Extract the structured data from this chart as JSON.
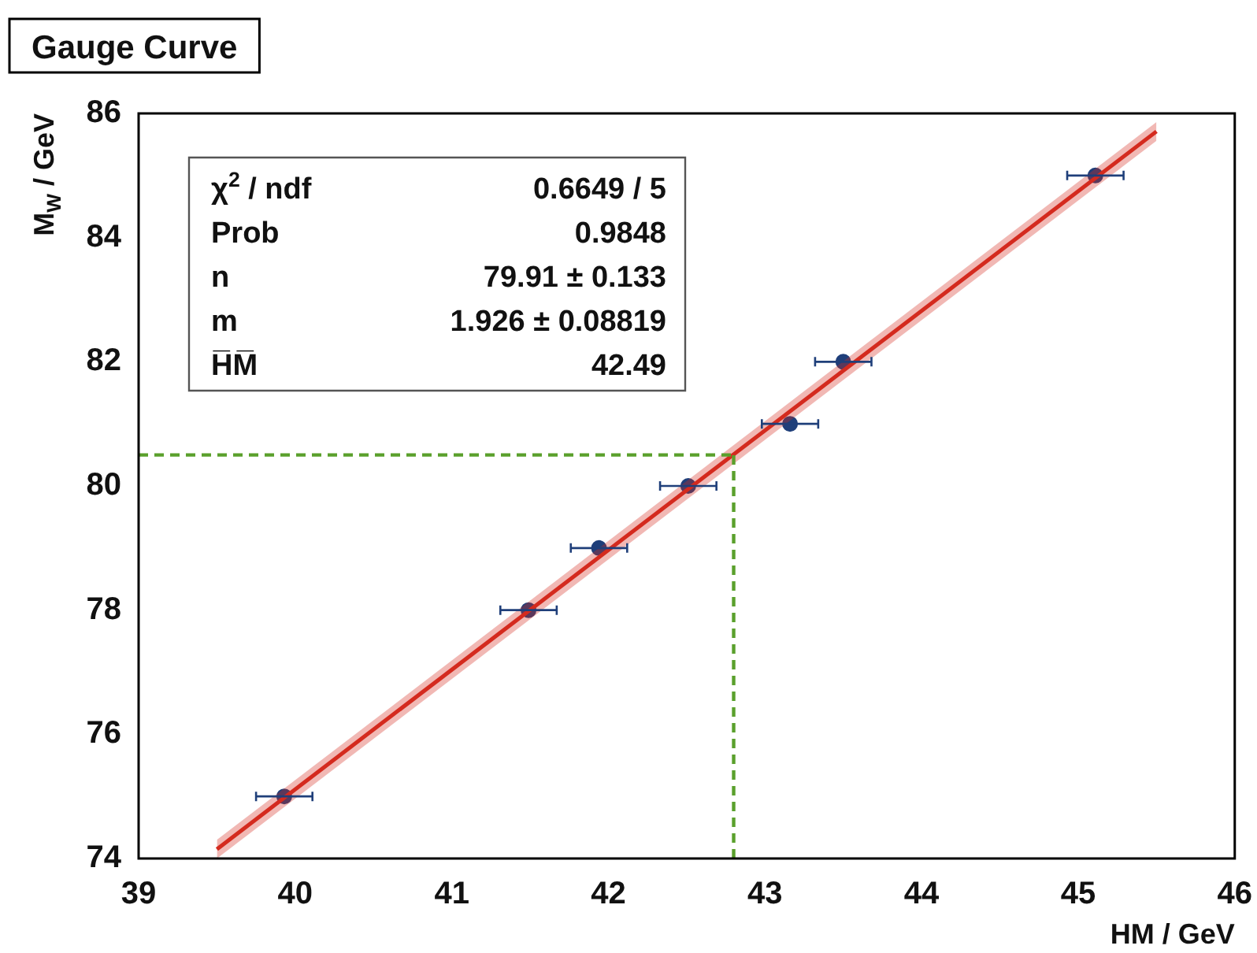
{
  "chart_data": {
    "type": "scatter",
    "title": "Gauge Curve",
    "xlabel": "HM / GeV",
    "ylabel": "M$_{W}$ / GeV",
    "annotations": [
      "χ$^{2}$ / ndf",
      "0.6649 / 5",
      "Prob",
      "0.9848",
      "n",
      "79.91 ± 0.133",
      "m",
      "1.926 ± 0.08819",
      "H̅M̅",
      "42.49"
    ],
    "xlim": [
      39,
      46
    ],
    "ylim": [
      74,
      86
    ],
    "xticks": [
      39,
      40,
      41,
      42,
      43,
      44,
      45,
      46
    ],
    "yticks": [
      74,
      76,
      78,
      80,
      82,
      84,
      86
    ],
    "grid": false,
    "legend": false,
    "marker": "circle",
    "ref_lines": [
      {
        "axis": "y",
        "value": 80.5,
        "color": "#5aa02c",
        "line_style": "dashed"
      },
      {
        "axis": "x",
        "value": 42.8,
        "color": "#5aa02c",
        "line_style": "dashed"
      }
    ],
    "series": [
      {
        "type": "line",
        "x": [
          39.5,
          45.5
        ],
        "values": [
          74.15,
          85.71
        ],
        "lower": [
          74.0,
          85.56
        ],
        "upper": [
          74.3,
          85.86
        ],
        "color": "#d42a1e",
        "line_style": "solid",
        "marker": "none"
      },
      {
        "type": "scatter",
        "x": [
          39.93,
          41.49,
          41.94,
          42.51,
          43.16,
          43.5,
          45.11
        ],
        "values": [
          75,
          78,
          79,
          80,
          81,
          82,
          85
        ],
        "xerrors": [
          0.18,
          0.18,
          0.18,
          0.18,
          0.18,
          0.18,
          0.18
        ],
        "color": "#1f3f7a"
      }
    ]
  }
}
